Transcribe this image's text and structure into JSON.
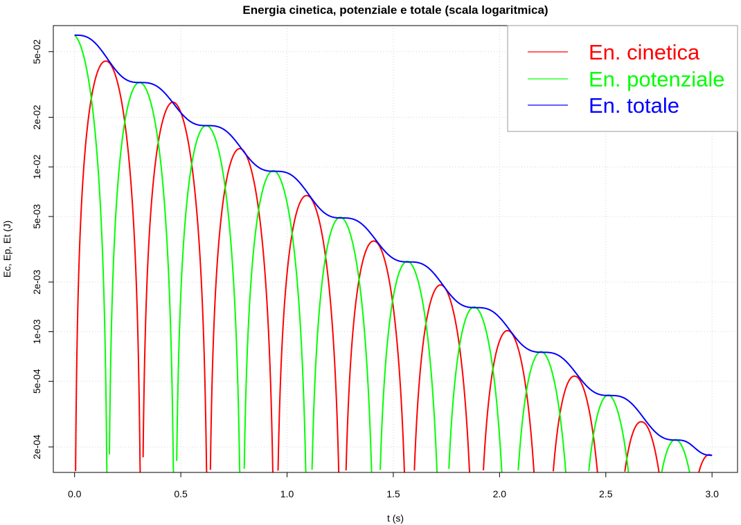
{
  "chart_data": {
    "type": "line",
    "title": "Energia cinetica, potenziale e totale (scala logaritmica)",
    "xlabel": "t (s)",
    "ylabel": "Ec, Ep, Et (J)",
    "y_scale": "log",
    "xlim": [
      -0.1,
      3.12
    ],
    "ylim": [
      0.00014,
      0.072
    ],
    "x_ticks": [
      0.0,
      0.5,
      1.0,
      1.5,
      2.0,
      2.5,
      3.0
    ],
    "x_tick_labels": [
      "0.0",
      "0.5",
      "1.0",
      "1.5",
      "2.0",
      "2.5",
      "3.0"
    ],
    "y_ticks": [
      0.0002,
      0.0005,
      0.001,
      0.002,
      0.005,
      0.01,
      0.02,
      0.05
    ],
    "y_tick_labels": [
      "2e-04",
      "5e-04",
      "1e-03",
      "2e-03",
      "5e-03",
      "1e-02",
      "2e-02",
      "5e-02"
    ],
    "grid": true,
    "legend_position": "top-right",
    "series": [
      {
        "name": "En. cinetica",
        "color": "#ff0000",
        "peaks": [
          [
            0.145,
            0.0445
          ],
          [
            0.46,
            0.0251
          ],
          [
            0.775,
            0.0131
          ],
          [
            1.09,
            0.0068
          ],
          [
            1.405,
            0.0036
          ],
          [
            1.72,
            0.00195
          ],
          [
            2.04,
            0.00102
          ],
          [
            2.355,
            0.00054
          ],
          [
            2.67,
            0.000285
          ],
          [
            2.995,
            0.000178
          ]
        ]
      },
      {
        "name": "En. potenziale",
        "color": "#00ff00",
        "peaks": [
          [
            0.0,
            0.063
          ],
          [
            0.31,
            0.0325
          ],
          [
            0.625,
            0.0178
          ],
          [
            0.945,
            0.0094
          ],
          [
            1.26,
            0.0049
          ],
          [
            1.575,
            0.00265
          ],
          [
            1.89,
            0.0014
          ],
          [
            2.205,
            0.00075
          ],
          [
            2.52,
            0.00041
          ],
          [
            2.835,
            0.00022
          ]
        ]
      },
      {
        "name": "En. totale",
        "color": "#0000ff",
        "points": [
          [
            0.0,
            0.063
          ],
          [
            0.31,
            0.0325
          ],
          [
            0.625,
            0.0178
          ],
          [
            0.945,
            0.0094
          ],
          [
            1.26,
            0.0049
          ],
          [
            1.575,
            0.00265
          ],
          [
            1.89,
            0.0014
          ],
          [
            2.205,
            0.00075
          ],
          [
            2.52,
            0.00041
          ],
          [
            2.835,
            0.00022
          ],
          [
            3.0,
            0.000178
          ]
        ]
      }
    ]
  }
}
